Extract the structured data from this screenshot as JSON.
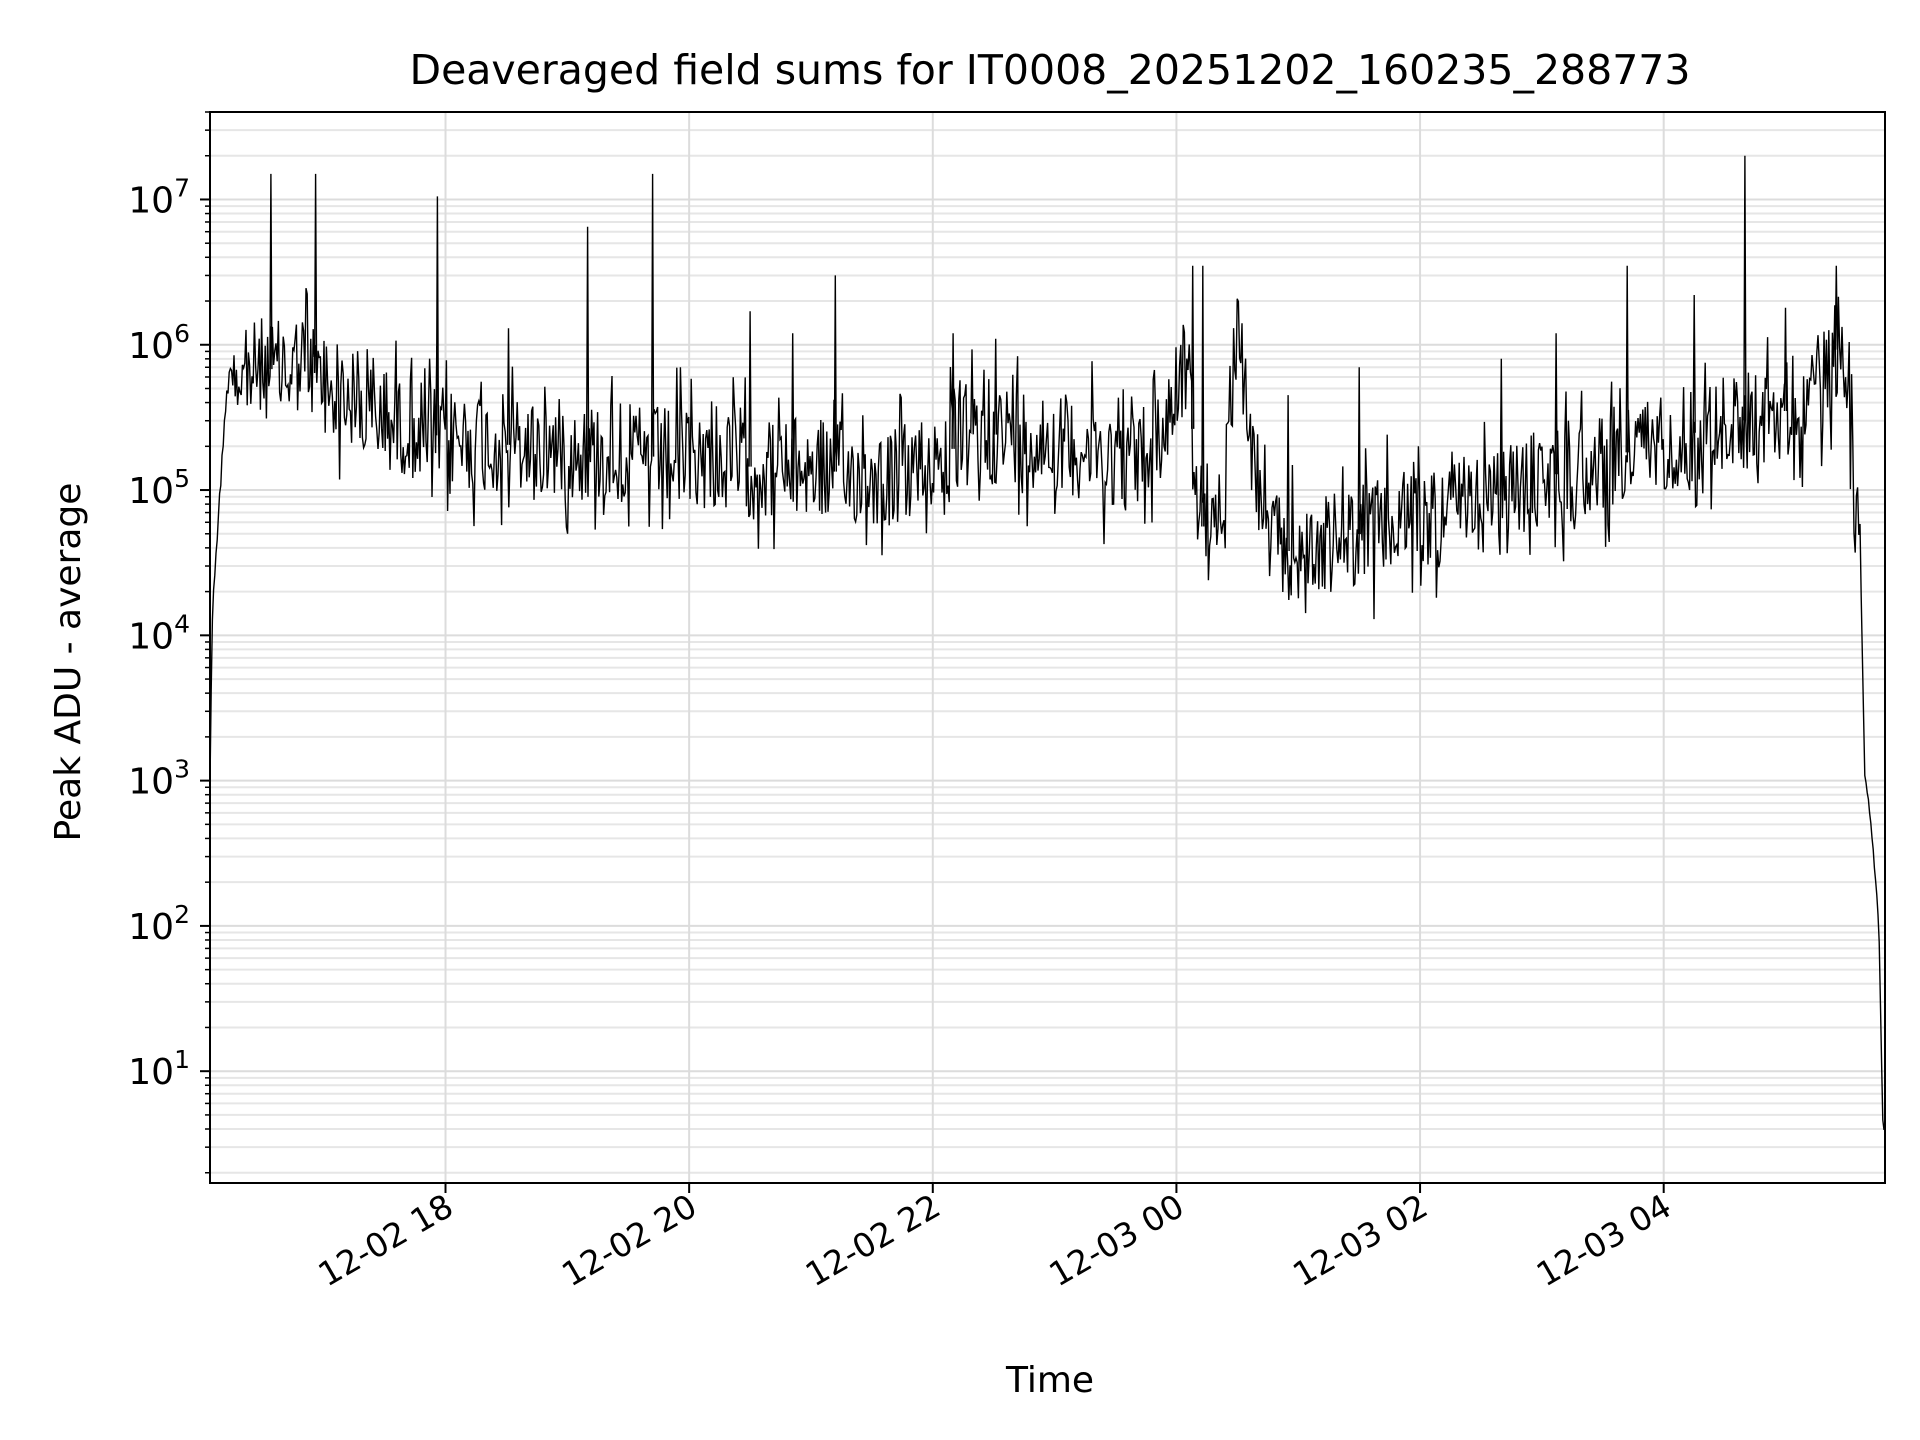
{
  "chart_data": {
    "type": "line",
    "title": "Deaveraged field sums for IT0008_20251202_160235_288773",
    "xlabel": "Time",
    "ylabel": "Peak ADU - average",
    "yscale": "log",
    "ylim": [
      1.7,
      40000000
    ],
    "xlim": [
      "2025-12-02 16:04",
      "2025-12-03 05:49"
    ],
    "grid": true,
    "grid_minor": true,
    "line_color": "#000000",
    "x_ticks": [
      {
        "time": "2025-12-02 18:00",
        "label": "12-02 18"
      },
      {
        "time": "2025-12-02 20:00",
        "label": "12-02 20"
      },
      {
        "time": "2025-12-02 22:00",
        "label": "12-02 22"
      },
      {
        "time": "2025-12-03 00:00",
        "label": "12-03 00"
      },
      {
        "time": "2025-12-03 02:00",
        "label": "12-03 02"
      },
      {
        "time": "2025-12-03 04:00",
        "label": "12-03 04"
      }
    ],
    "y_ticks": [
      {
        "value": 10,
        "base": "10",
        "exp": "1"
      },
      {
        "value": 100,
        "base": "10",
        "exp": "2"
      },
      {
        "value": 1000,
        "base": "10",
        "exp": "3"
      },
      {
        "value": 10000,
        "base": "10",
        "exp": "4"
      },
      {
        "value": 100000,
        "base": "10",
        "exp": "5"
      },
      {
        "value": 1000000,
        "base": "10",
        "exp": "6"
      },
      {
        "value": 10000000,
        "base": "10",
        "exp": "7"
      }
    ],
    "series": [
      {
        "points": [
          [
            "2025-12-02 16:04",
            1000
          ],
          [
            "2025-12-02 16:05",
            12000
          ],
          [
            "2025-12-02 16:07",
            40000
          ],
          [
            "2025-12-02 16:09",
            100000
          ],
          [
            "2025-12-02 16:12",
            450000
          ],
          [
            "2025-12-02 16:15",
            800000
          ],
          [
            "2025-12-02 16:20",
            600000
          ],
          [
            "2025-12-02 16:30",
            700000
          ],
          [
            "2025-12-02 16:40",
            650000
          ],
          [
            "2025-12-02 16:50",
            800000
          ],
          [
            "2025-12-02 17:00",
            550000
          ],
          [
            "2025-12-02 17:10",
            450000
          ],
          [
            "2025-12-02 17:20",
            350000
          ],
          [
            "2025-12-02 17:30",
            300000
          ],
          [
            "2025-12-02 17:40",
            280000
          ],
          [
            "2025-12-02 17:50",
            250000
          ],
          [
            "2025-12-02 18:00",
            230000
          ],
          [
            "2025-12-02 18:20",
            210000
          ],
          [
            "2025-12-02 18:40",
            200000
          ],
          [
            "2025-12-02 19:00",
            190000
          ],
          [
            "2025-12-02 19:20",
            180000
          ],
          [
            "2025-12-02 19:40",
            170000
          ],
          [
            "2025-12-02 20:00",
            170000
          ],
          [
            "2025-12-02 20:20",
            150000
          ],
          [
            "2025-12-02 20:40",
            140000
          ],
          [
            "2025-12-02 21:00",
            140000
          ],
          [
            "2025-12-02 21:20",
            130000
          ],
          [
            "2025-12-02 21:40",
            120000
          ],
          [
            "2025-12-02 22:00",
            160000
          ],
          [
            "2025-12-02 22:20",
            230000
          ],
          [
            "2025-12-02 22:40",
            250000
          ],
          [
            "2025-12-02 23:00",
            220000
          ],
          [
            "2025-12-02 23:20",
            180000
          ],
          [
            "2025-12-02 23:40",
            150000
          ],
          [
            "2025-12-02 23:55",
            300000
          ],
          [
            "2025-12-03 00:05",
            800000
          ],
          [
            "2025-12-03 00:12",
            60000
          ],
          [
            "2025-12-03 00:18",
            40000
          ],
          [
            "2025-12-03 00:24",
            150000
          ],
          [
            "2025-12-03 00:30",
            1500000
          ],
          [
            "2025-12-03 00:36",
            250000
          ],
          [
            "2025-12-03 00:45",
            45000
          ],
          [
            "2025-12-03 01:00",
            35000
          ],
          [
            "2025-12-03 01:20",
            45000
          ],
          [
            "2025-12-03 01:40",
            55000
          ],
          [
            "2025-12-03 02:00",
            65000
          ],
          [
            "2025-12-03 02:30",
            80000
          ],
          [
            "2025-12-03 03:00",
            120000
          ],
          [
            "2025-12-03 03:30",
            160000
          ],
          [
            "2025-12-03 04:00",
            220000
          ],
          [
            "2025-12-03 04:30",
            280000
          ],
          [
            "2025-12-03 05:00",
            350000
          ],
          [
            "2025-12-03 05:20",
            600000
          ],
          [
            "2025-12-03 05:28",
            1200000
          ],
          [
            "2025-12-03 05:33",
            300000
          ],
          [
            "2025-12-03 05:37",
            30000
          ],
          [
            "2025-12-03 05:39",
            1100
          ],
          [
            "2025-12-03 05:41",
            700
          ],
          [
            "2025-12-03 05:44",
            250
          ],
          [
            "2025-12-03 05:46",
            100
          ],
          [
            "2025-12-03 05:47",
            20
          ],
          [
            "2025-12-03 05:48",
            4
          ],
          [
            "2025-12-03 05:49",
            4
          ]
        ],
        "spikes": [
          [
            "2025-12-02 16:34",
            15000000
          ],
          [
            "2025-12-02 16:56",
            15000000
          ],
          [
            "2025-12-02 17:56",
            10500000
          ],
          [
            "2025-12-02 18:31",
            1300000
          ],
          [
            "2025-12-02 19:10",
            6500000
          ],
          [
            "2025-12-02 19:42",
            15000000
          ],
          [
            "2025-12-02 20:30",
            1700000
          ],
          [
            "2025-12-02 20:51",
            1200000
          ],
          [
            "2025-12-02 21:12",
            3000000
          ],
          [
            "2025-12-02 22:10",
            1200000
          ],
          [
            "2025-12-02 22:31",
            1100000
          ],
          [
            "2025-12-03 00:08",
            3500000
          ],
          [
            "2025-12-03 00:13",
            3500000
          ],
          [
            "2025-12-03 00:55",
            450000
          ],
          [
            "2025-12-03 01:30",
            700000
          ],
          [
            "2025-12-03 02:40",
            800000
          ],
          [
            "2025-12-03 03:07",
            1200000
          ],
          [
            "2025-12-03 03:42",
            3500000
          ],
          [
            "2025-12-03 04:15",
            2200000
          ],
          [
            "2025-12-03 04:40",
            20000000
          ],
          [
            "2025-12-03 05:00",
            1800000
          ],
          [
            "2025-12-03 05:25",
            3500000
          ]
        ]
      }
    ]
  }
}
